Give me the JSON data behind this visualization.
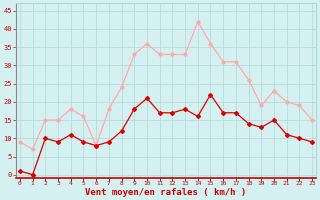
{
  "hours": [
    0,
    1,
    2,
    3,
    4,
    5,
    6,
    7,
    8,
    9,
    10,
    11,
    12,
    13,
    14,
    15,
    16,
    17,
    18,
    19,
    20,
    21,
    22,
    23
  ],
  "wind_avg": [
    1,
    0,
    10,
    9,
    11,
    9,
    8,
    9,
    12,
    18,
    21,
    17,
    17,
    18,
    16,
    22,
    17,
    17,
    14,
    13,
    15,
    11,
    10,
    9
  ],
  "wind_gust": [
    9,
    7,
    15,
    15,
    18,
    16,
    8,
    18,
    24,
    33,
    36,
    33,
    33,
    33,
    42,
    36,
    31,
    31,
    26,
    19,
    23,
    20,
    19,
    15
  ],
  "avg_color": "#dd0000",
  "gust_color": "#ffaaaa",
  "bg_color": "#d5f0f0",
  "grid_color": "#b0d8d8",
  "xlabel": "Vent moyen/en rafales ( km/h )",
  "xlabel_color": "#cc0000",
  "yticks": [
    0,
    5,
    10,
    15,
    20,
    25,
    30,
    35,
    40,
    45
  ],
  "ylim": [
    -1,
    47
  ],
  "xlim": [
    -0.3,
    23.3
  ]
}
